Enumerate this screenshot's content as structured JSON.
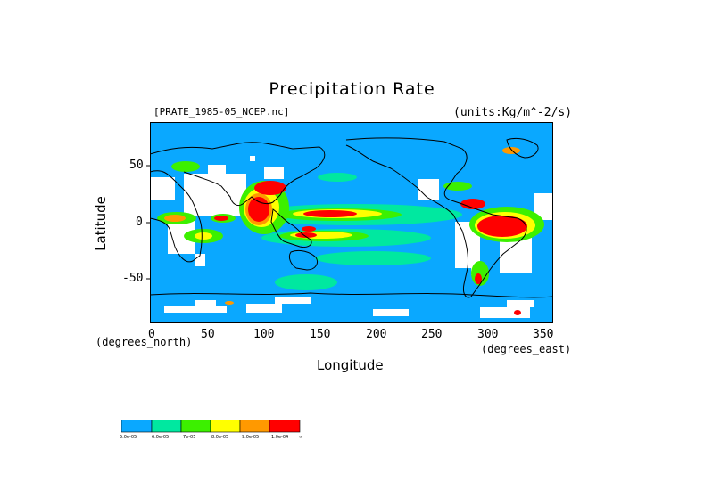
{
  "title": "Precipitation Rate",
  "dataset": "[PRATE_1985-05_NCEP.nc]",
  "units": "(units:Kg/m^-2/s)",
  "x_axis": {
    "label": "Longitude",
    "note_left": "(degrees_north)",
    "note_right": "(degrees_east)",
    "ticks": [
      "0",
      "50",
      "100",
      "150",
      "200",
      "250",
      "300",
      "350"
    ]
  },
  "y_axis": {
    "label": "Latitude",
    "ticks": [
      "50",
      "0",
      "-50"
    ]
  },
  "legend": {
    "colors": [
      "#0aa8ff",
      "#00e8a0",
      "#3cf000",
      "#ffff00",
      "#ff9900",
      "#ff0000"
    ],
    "labels": [
      "5.0e-05",
      "6.0e-05",
      "7e-05",
      "8.0e-05",
      "9.0e-05",
      "1.0e-04",
      "∞"
    ]
  },
  "colors": {
    "ocean_base": "#0aa8ff",
    "no_data": "#ffffff",
    "coast": "#000000"
  }
}
